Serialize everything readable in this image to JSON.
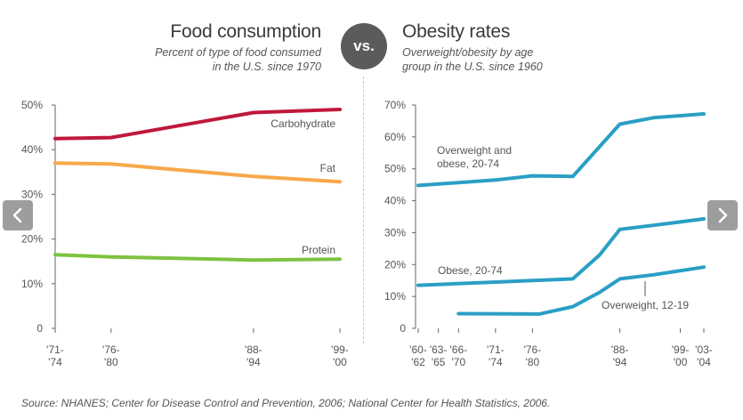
{
  "left_panel": {
    "title": "Food consumption",
    "subtitle_lines": [
      "Percent of type of food consumed",
      "in the U.S. since 1970"
    ]
  },
  "vs_label": "vs.",
  "right_panel": {
    "title": "Obesity rates",
    "subtitle_lines": [
      "Overweight/obesity by age",
      "group in the U.S. since 1960"
    ]
  },
  "source": "Source: NHANES; Center for Disease Control and Prevention, 2006; National Center for Health Statistics, 2006.",
  "nav": {
    "prev_icon": "chevron-left-icon",
    "next_icon": "chevron-right-icon"
  },
  "chart_data": [
    {
      "type": "line",
      "title": "Food consumption",
      "ylim": [
        0,
        50
      ],
      "yticks": [
        0,
        10,
        20,
        30,
        40,
        50
      ],
      "ytick_labels": [
        "0",
        "10%",
        "20%",
        "30%",
        "40%",
        "50%"
      ],
      "xticks": [
        {
          "x": 1971.5,
          "lines": [
            "'71-",
            "'74"
          ]
        },
        {
          "x": 1977,
          "lines": [
            "'76-",
            "'80"
          ]
        },
        {
          "x": 1991,
          "lines": [
            "'88-",
            "'94"
          ]
        },
        {
          "x": 1999.5,
          "lines": [
            "'99-",
            "'00"
          ]
        }
      ],
      "xlim": [
        1971.5,
        1999.5
      ],
      "series": [
        {
          "name": "Carbohydrate",
          "color": "#c0183c",
          "x": [
            1971.5,
            1977,
            1991,
            1999.5
          ],
          "values": [
            42.5,
            42.7,
            48.3,
            49
          ]
        },
        {
          "name": "Fat",
          "color": "#f7a84a",
          "x": [
            1971.5,
            1977,
            1991,
            1999.5
          ],
          "values": [
            37,
            36.8,
            34,
            32.8
          ]
        },
        {
          "name": "Protein",
          "color": "#7dc242",
          "x": [
            1971.5,
            1977,
            1991,
            1999.5
          ],
          "values": [
            16.5,
            16,
            15.3,
            15.5
          ]
        }
      ]
    },
    {
      "type": "line",
      "title": "Obesity rates",
      "ylim": [
        0,
        70
      ],
      "yticks": [
        0,
        10,
        20,
        30,
        40,
        50,
        60,
        70
      ],
      "ytick_labels": [
        "0",
        "10%",
        "20%",
        "30%",
        "40%",
        "50%",
        "60%",
        "70%"
      ],
      "xticks": [
        {
          "x": 1961,
          "lines": [
            "'60-",
            "'62"
          ]
        },
        {
          "x": 1964,
          "lines": [
            "'63-",
            "'65"
          ]
        },
        {
          "x": 1967,
          "lines": [
            "'66-",
            "'70"
          ]
        },
        {
          "x": 1972.5,
          "lines": [
            "'71-",
            "'74"
          ]
        },
        {
          "x": 1978,
          "lines": [
            "'76-",
            "'80"
          ]
        },
        {
          "x": 1991,
          "lines": [
            "'88-",
            "'94"
          ]
        },
        {
          "x": 2000,
          "lines": [
            "'99-",
            "'00"
          ]
        },
        {
          "x": 2003.5,
          "lines": [
            "'03-",
            "'04"
          ]
        }
      ],
      "xlim": [
        1961,
        2003.5
      ],
      "series": [
        {
          "name": "Overweight and obese, 20-74",
          "label_lines": [
            "Overweight and",
            "obese, 20-74"
          ],
          "color": "#2a9fc5",
          "x": [
            1961,
            1972.5,
            1978,
            1984,
            1991,
            1996,
            2003.5
          ],
          "values": [
            44.8,
            46.5,
            47.8,
            47.6,
            64,
            66,
            67.2
          ]
        },
        {
          "name": "Obese, 20-74",
          "label_lines": [
            "Obese, 20-74"
          ],
          "color": "#2a9fc5",
          "x": [
            1961,
            1972.5,
            1978,
            1984,
            1988,
            1991,
            1996,
            2003.5
          ],
          "values": [
            13.5,
            14.5,
            15,
            15.5,
            23,
            31,
            32.3,
            34.3
          ]
        },
        {
          "name": "Overweight, 12-19",
          "label_lines": [
            "Overweight, 12-19"
          ],
          "color": "#2a9fc5",
          "x": [
            1967,
            1979,
            1984,
            1988,
            1991,
            1996,
            2003.5
          ],
          "values": [
            4.6,
            4.5,
            6.8,
            11.3,
            15.5,
            16.8,
            19.2
          ]
        }
      ]
    }
  ]
}
